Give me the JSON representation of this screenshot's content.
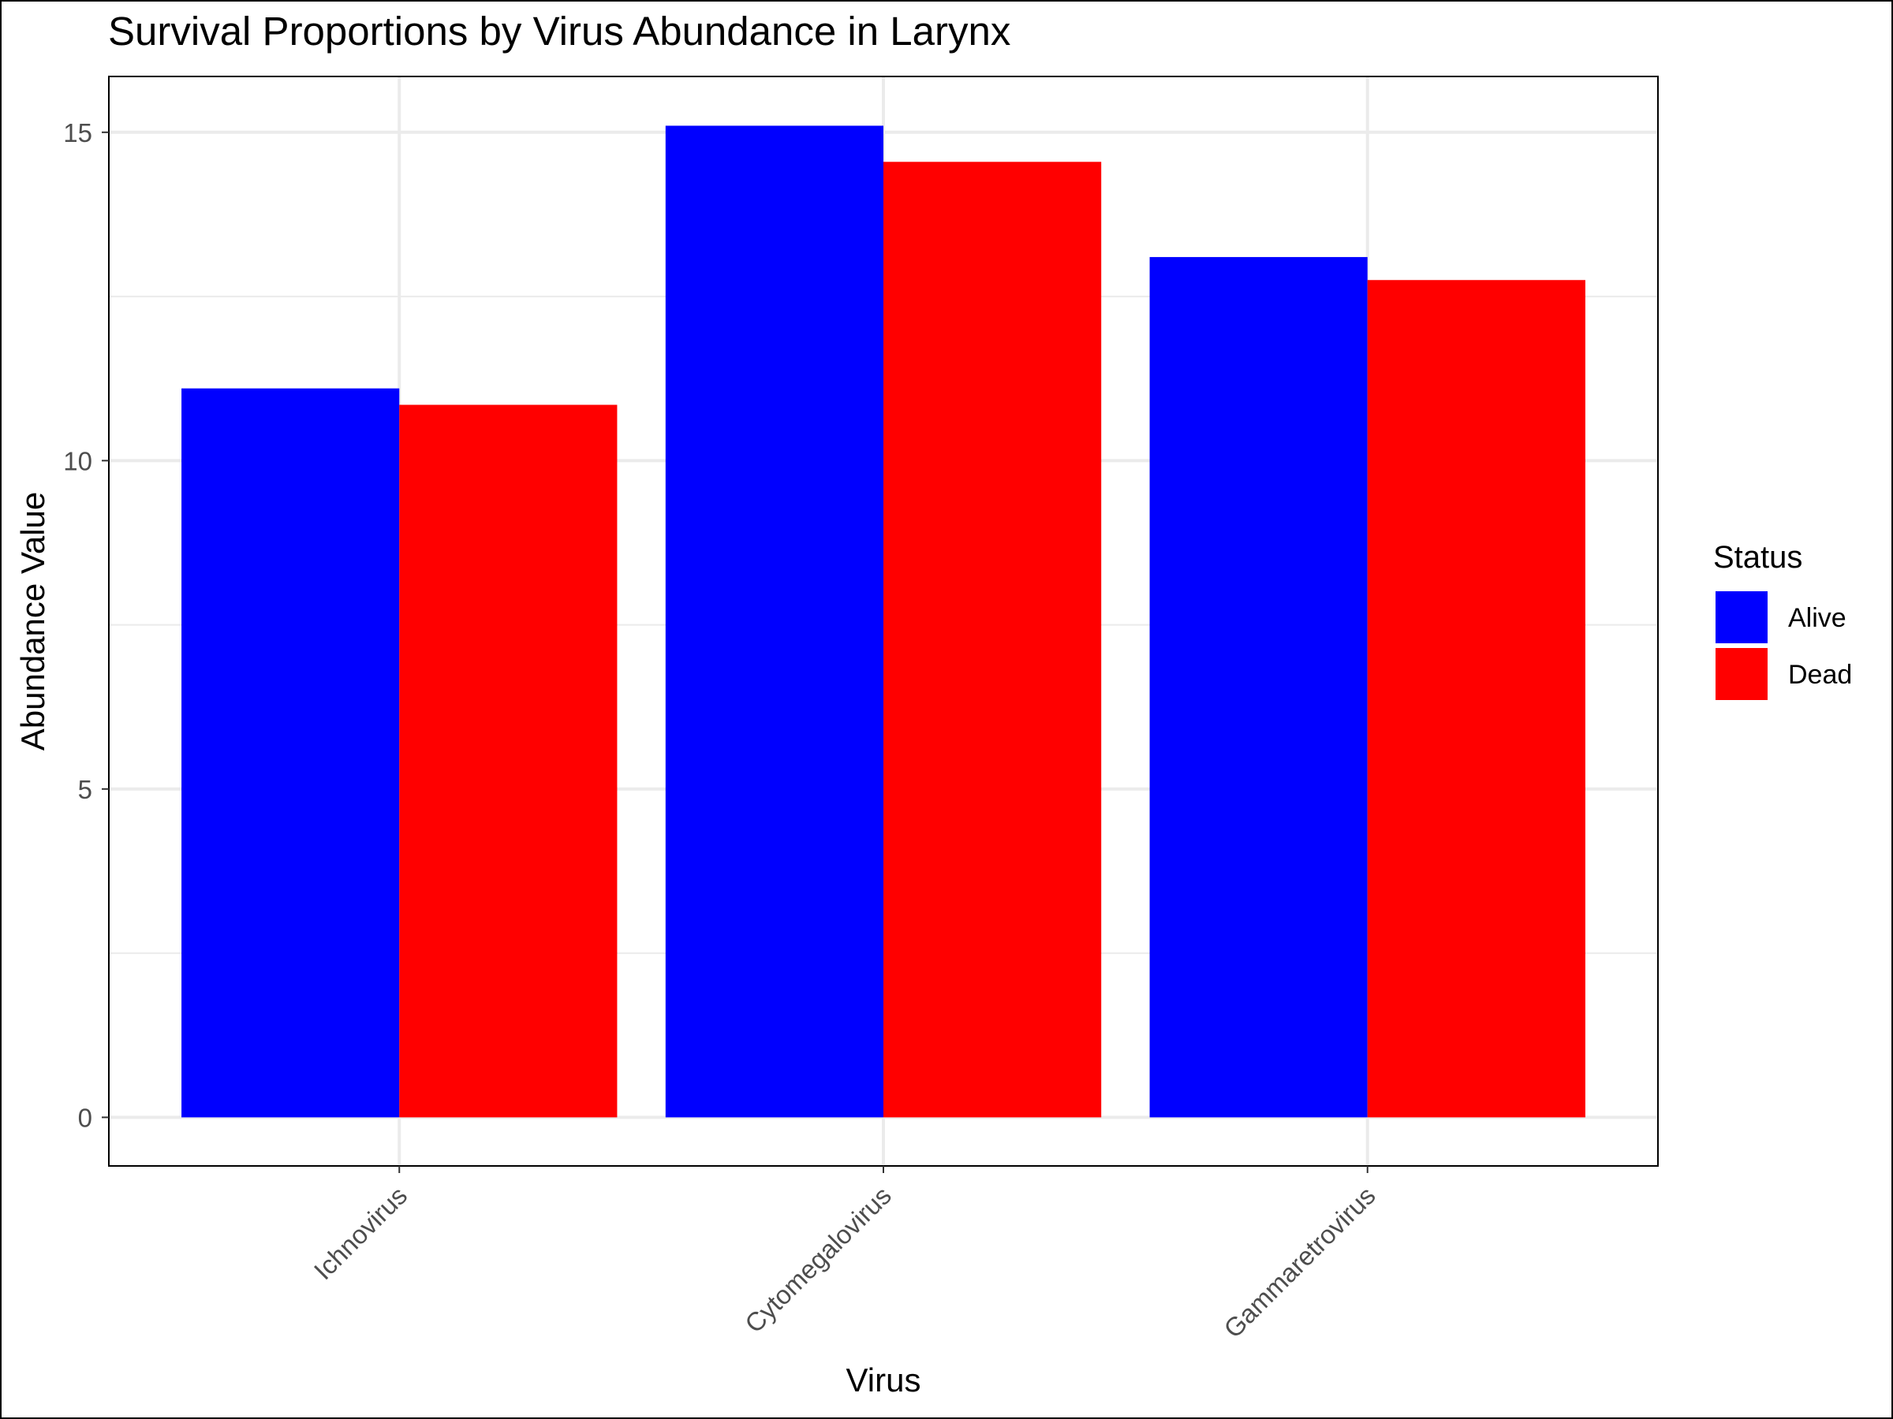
{
  "chart_data": {
    "type": "bar",
    "title": "Survival Proportions by Virus Abundance in Larynx",
    "xlabel": "Virus",
    "ylabel": "Abundance Value",
    "categories": [
      "Ichnovirus",
      "Cytomegalovirus",
      "Gammaretrovirus"
    ],
    "series": [
      {
        "name": "Alive",
        "color": "#0000FF",
        "values": [
          11.1,
          15.1,
          13.1
        ]
      },
      {
        "name": "Dead",
        "color": "#FF0000",
        "values": [
          10.85,
          14.55,
          12.75
        ]
      }
    ],
    "ylim": [
      -0.74,
      15.85
    ],
    "yticks": [
      0,
      5,
      10,
      15
    ],
    "ytick_labels": [
      "0",
      "5",
      "10",
      "15"
    ],
    "grid": true,
    "legend": {
      "title": "Status",
      "position": "right"
    }
  }
}
